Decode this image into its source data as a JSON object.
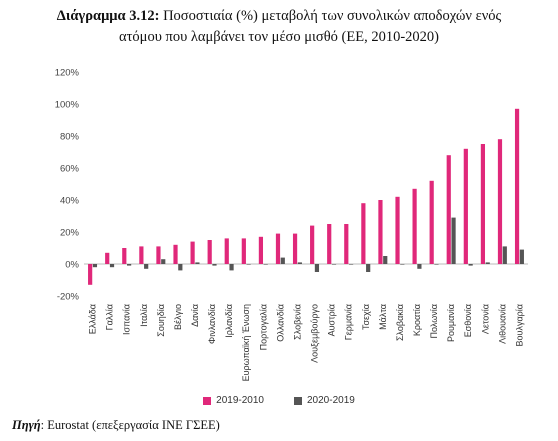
{
  "title_lead": "Διάγραμμα 3.12:",
  "title_line1": "Ποσοστιαία (%) μεταβολή των συνολικών αποδοχών ενός",
  "title_line2": "ατόμου που λαμβάνει τον μέσο μισθό (ΕΕ, 2010-2020)",
  "source_label": "Πηγή",
  "source_text": ": Eurostat (επεξεργασία ΙΝΕ ΓΣΕΕ)",
  "colors": {
    "series1": "#e0287a",
    "series2": "#555555"
  },
  "chart_data": {
    "type": "bar",
    "title": "Ποσοστιαία (%) μεταβολή των συνολικών αποδοχών ενός ατόμου που λαμβάνει τον μέσο μισθό (ΕΕ, 2010-2020)",
    "categories": [
      "Ελλάδα",
      "Γαλλία",
      "Ισπανία",
      "Ιταλία",
      "Σουηδία",
      "Βέλγιο",
      "Δανία",
      "Φινλανδία",
      "Ιρλανδία",
      "Ευρωπαϊκή Ένωση",
      "Πορτογαλία",
      "Ολλανδία",
      "Σλοβενία",
      "Λουξεμβούργο",
      "Αυστρία",
      "Γερμανία",
      "Τσεχία",
      "Μάλτα",
      "Σλοβακία",
      "Κροατία",
      "Πολωνία",
      "Ρουμανία",
      "Εσθονία",
      "Λετονία",
      "Λιθουανία",
      "Βουλγαρία"
    ],
    "series": [
      {
        "name": "2019-2010",
        "values": [
          -13,
          7,
          10,
          11,
          11,
          12,
          14,
          15,
          16,
          16,
          17,
          19,
          19,
          24,
          25,
          25,
          38,
          40,
          42,
          47,
          52,
          68,
          72,
          75,
          78,
          97
        ]
      },
      {
        "name": "2020-2019",
        "values": [
          -2,
          -2,
          -1,
          -3,
          3,
          -4,
          1,
          -1,
          -4,
          0,
          0,
          4,
          1,
          -5,
          0,
          0,
          -5,
          5,
          0,
          -3,
          0,
          29,
          -1,
          1,
          11,
          9
        ]
      }
    ],
    "ylim": [
      -20,
      120
    ],
    "yticks": [
      -20,
      0,
      20,
      40,
      60,
      80,
      100,
      120
    ],
    "ytick_labels": [
      "-20%",
      "0%",
      "20%",
      "40%",
      "60%",
      "80%",
      "100%",
      "120%"
    ],
    "xlabel": "",
    "ylabel": "",
    "grid": false,
    "legend_position": "bottom"
  }
}
